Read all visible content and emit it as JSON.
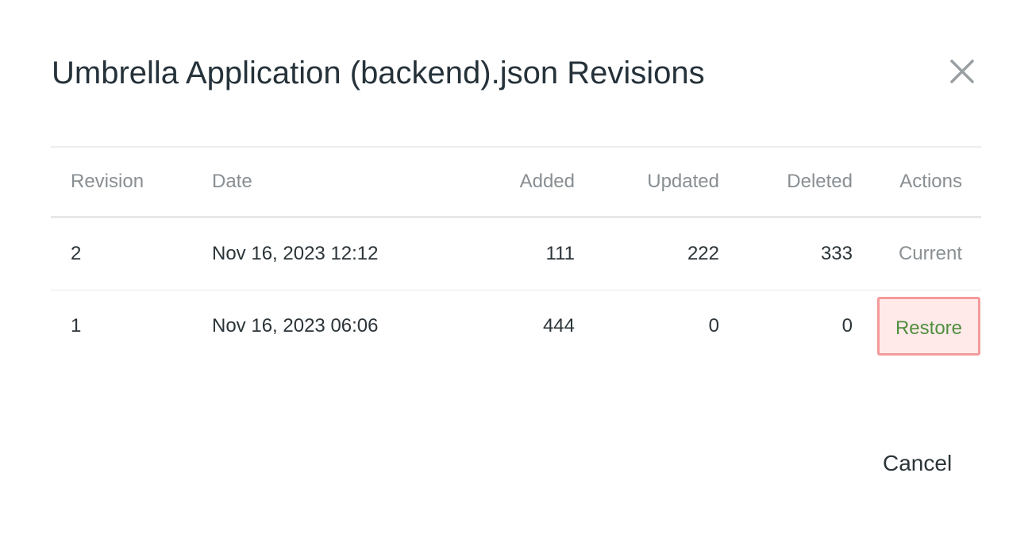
{
  "dialog": {
    "title": "Umbrella Application (backend).json Revisions",
    "close_icon": "close-icon",
    "cancel_label": "Cancel"
  },
  "table": {
    "headers": [
      "Revision",
      "Date",
      "Added",
      "Updated",
      "Deleted",
      "Actions"
    ],
    "rows": [
      {
        "revision": "2",
        "date": "Nov 16, 2023 12:12",
        "added": "111",
        "updated": "222",
        "deleted": "333",
        "action": "Current"
      },
      {
        "revision": "1",
        "date": "Nov 16, 2023 06:06",
        "added": "444",
        "updated": "0",
        "deleted": "0",
        "action": "Restore"
      }
    ]
  },
  "colors": {
    "restore_text": "#4f8f3e",
    "restore_bg": "#ffe9e9",
    "restore_border": "#f59a9a"
  }
}
